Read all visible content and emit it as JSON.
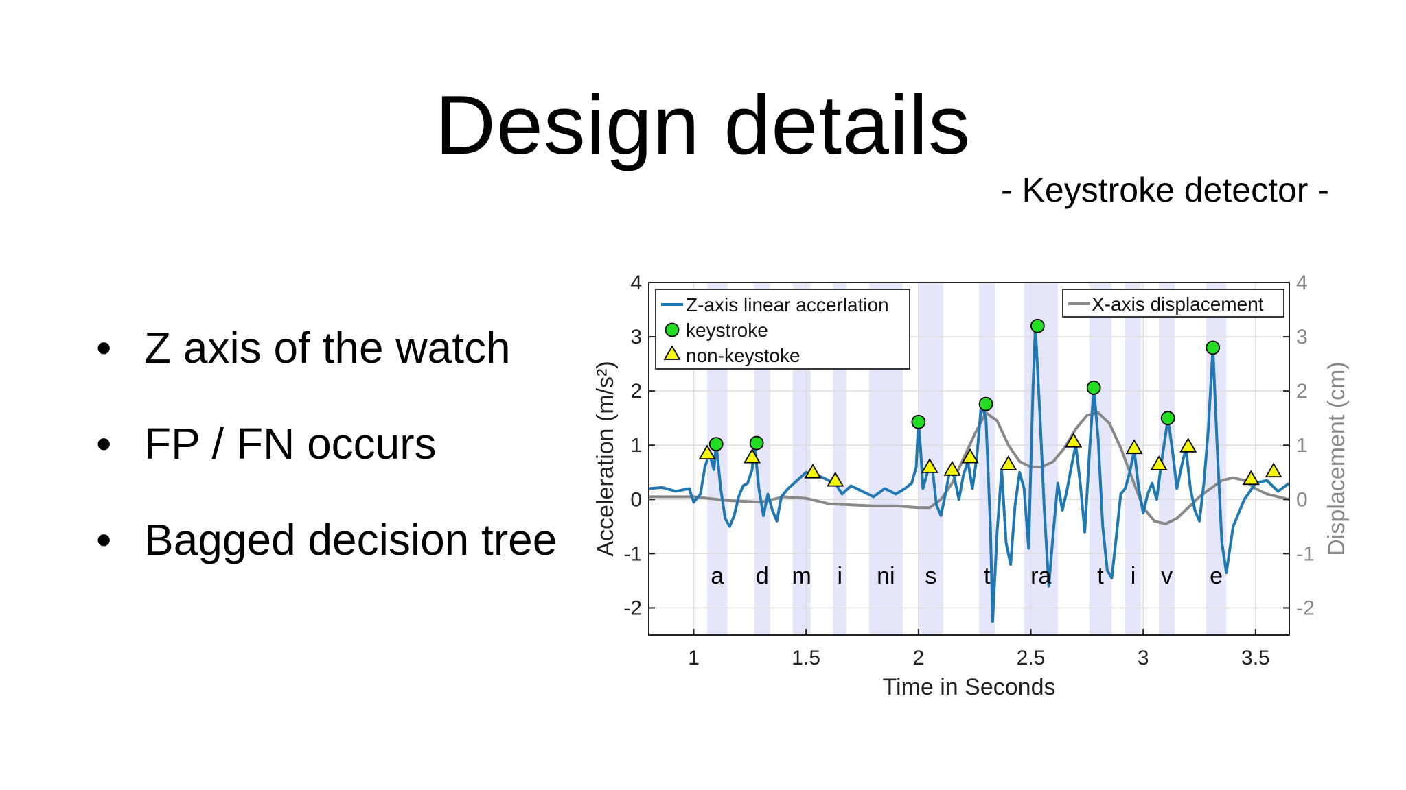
{
  "slide": {
    "title": "Design details",
    "subtitle": "- Keystroke detector -",
    "bullets": [
      "Z axis of the watch",
      "FP / FN occurs",
      "Bagged decision tree"
    ]
  },
  "chart_data": {
    "type": "line",
    "xlabel": "Time in Seconds",
    "ylabel": "Acceleration (m/s²)",
    "y2label": "Displacement (cm)",
    "xlim": [
      0.8,
      3.65
    ],
    "ylim": [
      -2.5,
      4
    ],
    "y2lim": [
      -2.5,
      4
    ],
    "xticks": [
      1,
      1.5,
      2,
      2.5,
      3,
      3.5
    ],
    "yticks": [
      -2,
      -1,
      0,
      1,
      2,
      3,
      4
    ],
    "grid": true,
    "legend": {
      "left_placement": "top-left",
      "right_placement": "top-right",
      "left_entries": [
        "Z-axis linear accerlation",
        "keystroke",
        "non-keystoke"
      ],
      "right_entries": [
        "X-axis displacement"
      ]
    },
    "colors": {
      "accel": "#1f77b4",
      "displacement": "#888888",
      "keystroke": "#22dd22",
      "non_keystroke": "#f5f50a",
      "shade": "#e6e6fa"
    },
    "key_intervals": [
      {
        "label": "a",
        "x0": 1.06,
        "x1": 1.15
      },
      {
        "label": "d",
        "x0": 1.27,
        "x1": 1.34
      },
      {
        "label": "m",
        "x0": 1.44,
        "x1": 1.52
      },
      {
        "label": "i",
        "x0": 1.62,
        "x1": 1.68
      },
      {
        "label": "ni",
        "x0": 1.78,
        "x1": 1.93
      },
      {
        "label": "s",
        "x0": 2.0,
        "x1": 2.11
      },
      {
        "label": "t",
        "x0": 2.27,
        "x1": 2.34
      },
      {
        "label": "ra",
        "x0": 2.47,
        "x1": 2.62
      },
      {
        "label": "t",
        "x0": 2.76,
        "x1": 2.86
      },
      {
        "label": "i",
        "x0": 2.92,
        "x1": 2.99
      },
      {
        "label": "v",
        "x0": 3.07,
        "x1": 3.14
      },
      {
        "label": "e",
        "x0": 3.28,
        "x1": 3.37
      }
    ],
    "series": [
      {
        "name": "Z-axis linear accerlation",
        "x": [
          0.8,
          0.86,
          0.92,
          0.98,
          1.0,
          1.03,
          1.05,
          1.07,
          1.09,
          1.1,
          1.12,
          1.14,
          1.16,
          1.18,
          1.2,
          1.22,
          1.24,
          1.26,
          1.27,
          1.29,
          1.31,
          1.33,
          1.35,
          1.37,
          1.39,
          1.42,
          1.46,
          1.5,
          1.55,
          1.6,
          1.63,
          1.66,
          1.7,
          1.75,
          1.8,
          1.85,
          1.9,
          1.94,
          1.97,
          1.99,
          2.0,
          2.01,
          2.02,
          2.04,
          2.06,
          2.08,
          2.1,
          2.12,
          2.14,
          2.16,
          2.18,
          2.2,
          2.22,
          2.24,
          2.26,
          2.28,
          2.3,
          2.32,
          2.33,
          2.35,
          2.37,
          2.39,
          2.41,
          2.43,
          2.45,
          2.47,
          2.49,
          2.51,
          2.52,
          2.54,
          2.56,
          2.58,
          2.6,
          2.62,
          2.64,
          2.66,
          2.68,
          2.7,
          2.72,
          2.74,
          2.76,
          2.78,
          2.8,
          2.82,
          2.84,
          2.86,
          2.88,
          2.9,
          2.92,
          2.94,
          2.96,
          2.98,
          3.0,
          3.02,
          3.04,
          3.06,
          3.08,
          3.1,
          3.11,
          3.13,
          3.15,
          3.17,
          3.19,
          3.21,
          3.23,
          3.25,
          3.27,
          3.29,
          3.31,
          3.33,
          3.35,
          3.37,
          3.4,
          3.45,
          3.5,
          3.55,
          3.6,
          3.65
        ],
        "values": [
          0.2,
          0.22,
          0.15,
          0.2,
          -0.05,
          0.1,
          0.6,
          0.85,
          0.55,
          1.02,
          0.2,
          -0.35,
          -0.5,
          -0.3,
          0.05,
          0.25,
          0.3,
          0.55,
          1.04,
          0.2,
          -0.3,
          0.1,
          -0.2,
          -0.4,
          0.05,
          0.2,
          0.35,
          0.5,
          0.45,
          0.35,
          0.3,
          0.1,
          0.25,
          0.15,
          0.05,
          0.2,
          0.1,
          0.2,
          0.3,
          0.6,
          1.43,
          0.9,
          0.2,
          0.5,
          0.65,
          -0.1,
          -0.3,
          0.1,
          0.55,
          0.4,
          0.0,
          0.45,
          0.7,
          0.2,
          0.8,
          1.76,
          1.5,
          -0.5,
          -2.25,
          -0.6,
          0.55,
          -0.8,
          -1.2,
          -0.1,
          0.5,
          0.2,
          -0.9,
          2.1,
          3.2,
          1.6,
          -0.2,
          -1.6,
          -0.6,
          0.3,
          -0.2,
          0.15,
          0.6,
          1.0,
          0.3,
          -0.6,
          0.8,
          2.06,
          1.1,
          -0.5,
          -1.3,
          -1.45,
          -0.7,
          0.1,
          0.2,
          0.5,
          0.9,
          0.2,
          -0.25,
          0.1,
          0.3,
          0.0,
          0.65,
          1.2,
          1.5,
          0.9,
          0.2,
          0.6,
          0.95,
          0.2,
          -0.2,
          -0.4,
          0.3,
          1.3,
          2.8,
          0.9,
          -0.8,
          -1.35,
          -0.5,
          0.0,
          0.3,
          0.35,
          0.15,
          0.3
        ]
      },
      {
        "name": "X-axis displacement",
        "axis": "right",
        "x": [
          0.8,
          1.0,
          1.15,
          1.3,
          1.4,
          1.5,
          1.6,
          1.7,
          1.8,
          1.9,
          2.0,
          2.05,
          2.1,
          2.15,
          2.2,
          2.25,
          2.3,
          2.35,
          2.4,
          2.45,
          2.5,
          2.55,
          2.6,
          2.65,
          2.7,
          2.75,
          2.8,
          2.85,
          2.9,
          2.95,
          3.0,
          3.05,
          3.1,
          3.15,
          3.2,
          3.25,
          3.3,
          3.35,
          3.4,
          3.45,
          3.5,
          3.55,
          3.6,
          3.65
        ],
        "values": [
          0.05,
          0.05,
          -0.02,
          -0.05,
          0.05,
          0.02,
          -0.08,
          -0.1,
          -0.12,
          -0.12,
          -0.15,
          -0.15,
          0.0,
          0.3,
          0.75,
          1.2,
          1.6,
          1.45,
          1.0,
          0.7,
          0.6,
          0.6,
          0.7,
          0.95,
          1.3,
          1.55,
          1.6,
          1.4,
          0.95,
          0.4,
          -0.15,
          -0.4,
          -0.45,
          -0.35,
          -0.15,
          0.05,
          0.2,
          0.35,
          0.4,
          0.35,
          0.2,
          0.1,
          0.05,
          0.0
        ]
      }
    ],
    "markers": {
      "keystroke": [
        {
          "x": 1.1,
          "y": 1.02
        },
        {
          "x": 1.28,
          "y": 1.04
        },
        {
          "x": 2.0,
          "y": 1.43
        },
        {
          "x": 2.3,
          "y": 1.76
        },
        {
          "x": 2.53,
          "y": 3.2
        },
        {
          "x": 2.78,
          "y": 2.06
        },
        {
          "x": 3.11,
          "y": 1.5
        },
        {
          "x": 3.31,
          "y": 2.8
        }
      ],
      "non_keystroke": [
        {
          "x": 1.06,
          "y": 0.85
        },
        {
          "x": 1.26,
          "y": 0.78
        },
        {
          "x": 1.53,
          "y": 0.5
        },
        {
          "x": 1.63,
          "y": 0.35
        },
        {
          "x": 2.05,
          "y": 0.6
        },
        {
          "x": 2.15,
          "y": 0.55
        },
        {
          "x": 2.23,
          "y": 0.78
        },
        {
          "x": 2.4,
          "y": 0.65
        },
        {
          "x": 2.69,
          "y": 1.07
        },
        {
          "x": 2.96,
          "y": 0.95
        },
        {
          "x": 3.07,
          "y": 0.65
        },
        {
          "x": 3.2,
          "y": 0.98
        },
        {
          "x": 3.48,
          "y": 0.38
        },
        {
          "x": 3.58,
          "y": 0.52
        }
      ]
    }
  }
}
